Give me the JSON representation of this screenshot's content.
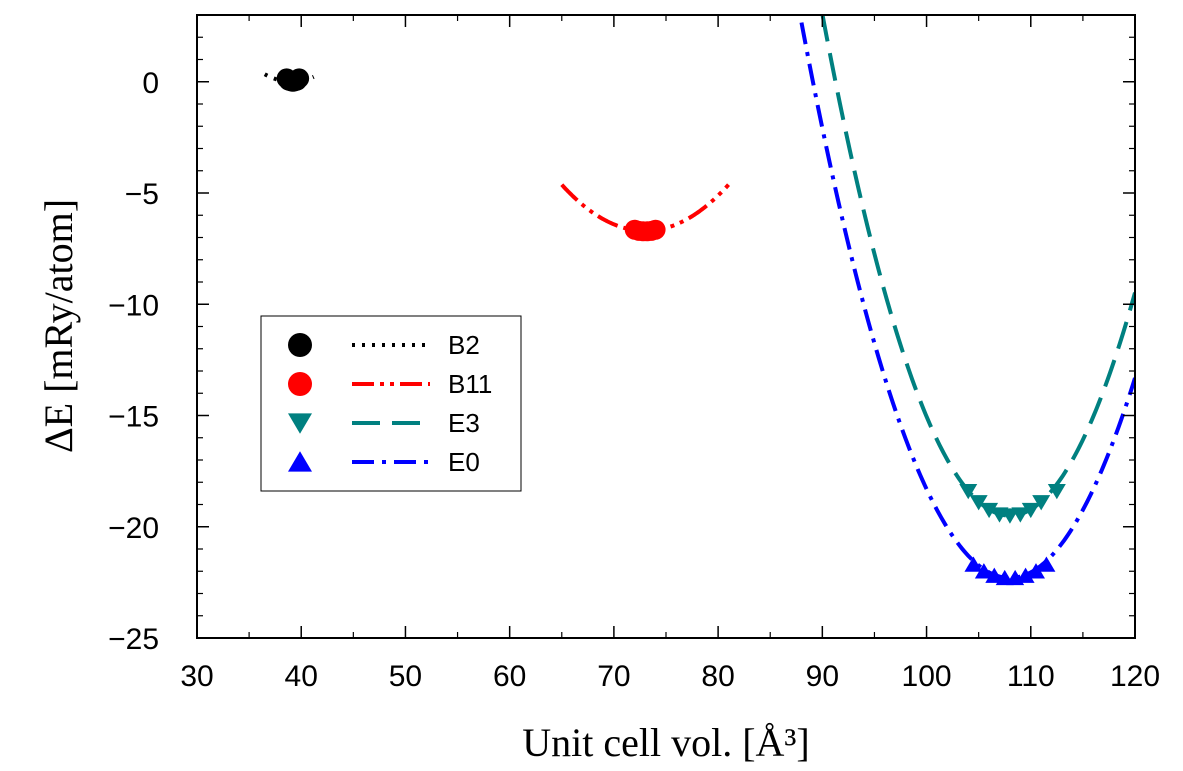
{
  "chart_data": {
    "type": "scatter",
    "title": "",
    "xlabel": "Unit cell vol. [Å³]",
    "ylabel": "ΔE [mRy/atom]",
    "xlim": [
      30,
      120
    ],
    "ylim": [
      -25,
      3
    ],
    "xticks": [
      30,
      40,
      50,
      60,
      70,
      80,
      90,
      100,
      110,
      120
    ],
    "yticks": [
      0,
      -5,
      -10,
      -15,
      -20,
      -25
    ],
    "x_tick_labels": [
      "30",
      "40",
      "50",
      "60",
      "70",
      "80",
      "90",
      "100",
      "110",
      "120"
    ],
    "y_tick_labels": [
      "0",
      "−5",
      "−10",
      "−15",
      "−20",
      "−25"
    ],
    "grid": false,
    "legend_position": "left-center",
    "series": [
      {
        "name": "B2",
        "color": "#000000",
        "marker": "circle",
        "line_style": "dotted",
        "fit": {
          "v0": 39.1,
          "e0": 0.0,
          "k": 0.05,
          "xmin": 36.5,
          "xmax": 41.2
        },
        "points": [
          [
            38.6,
            0.15
          ],
          [
            38.8,
            0.05
          ],
          [
            39.0,
            0.02
          ],
          [
            39.2,
            0.0
          ],
          [
            39.4,
            0.02
          ],
          [
            39.6,
            0.05
          ],
          [
            39.8,
            0.15
          ]
        ]
      },
      {
        "name": "B11",
        "color": "#ff0000",
        "marker": "circle",
        "line_style": "dash-dot-dot",
        "fit": {
          "v0": 73.0,
          "e0": -6.7,
          "k": 0.0324,
          "xmin": 65,
          "xmax": 81
        },
        "points": [
          [
            72.0,
            -6.65
          ],
          [
            72.4,
            -6.7
          ],
          [
            72.8,
            -6.72
          ],
          [
            73.2,
            -6.72
          ],
          [
            73.6,
            -6.7
          ],
          [
            74.0,
            -6.65
          ]
        ]
      },
      {
        "name": "E3",
        "color": "#008080",
        "marker": "triangle-down",
        "line_style": "dashed",
        "fit": {
          "v0": 108.0,
          "e0": -19.5,
          "k": 0.0696,
          "xmin": 90,
          "xmax": 120
        },
        "points": [
          [
            104.0,
            -18.4
          ],
          [
            105.0,
            -18.9
          ],
          [
            106.0,
            -19.25
          ],
          [
            107.0,
            -19.45
          ],
          [
            108.0,
            -19.5
          ],
          [
            109.0,
            -19.45
          ],
          [
            110.0,
            -19.25
          ],
          [
            111.0,
            -18.9
          ],
          [
            112.5,
            -18.4
          ]
        ]
      },
      {
        "name": "E0",
        "color": "#0000ff",
        "marker": "triangle-up",
        "line_style": "dash-dot",
        "fit": {
          "v0": 108.0,
          "e0": -22.3,
          "k": 0.0624,
          "xmin": 88,
          "xmax": 120
        },
        "points": [
          [
            104.5,
            -21.7
          ],
          [
            105.5,
            -22.0
          ],
          [
            106.5,
            -22.2
          ],
          [
            107.5,
            -22.3
          ],
          [
            108.5,
            -22.3
          ],
          [
            109.5,
            -22.2
          ],
          [
            110.5,
            -22.0
          ],
          [
            111.5,
            -21.7
          ]
        ]
      }
    ]
  }
}
